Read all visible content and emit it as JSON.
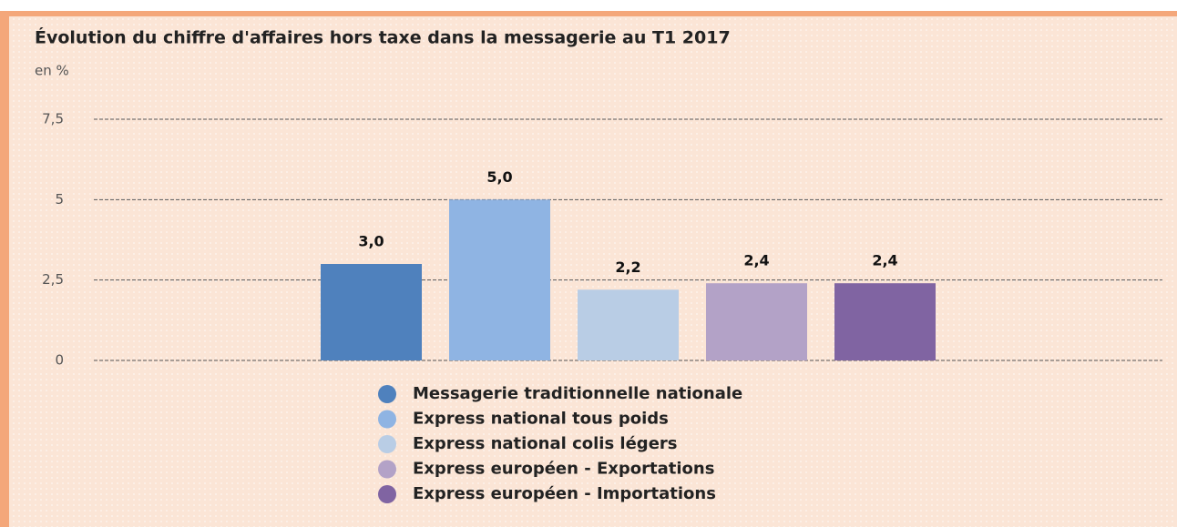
{
  "chart_data": {
    "type": "bar",
    "title": "Évolution du chiffre d'affaires hors taxe dans la messagerie au T1 2017",
    "ylabel": "en %",
    "series": [
      {
        "name": "Messagerie traditionnelle nationale",
        "color": "#4f81bd",
        "values": [
          3.0
        ],
        "value_labels": [
          "3,0"
        ]
      },
      {
        "name": "Express national tous poids",
        "color": "#8fb4e3",
        "values": [
          5.0
        ],
        "value_labels": [
          "5,0"
        ]
      },
      {
        "name": "Express national colis légers",
        "color": "#b9cde5",
        "values": [
          2.2
        ],
        "value_labels": [
          "2,2"
        ]
      },
      {
        "name": "Express européen - Exportations",
        "color": "#b3a2c7",
        "values": [
          2.4
        ],
        "value_labels": [
          "2,4"
        ]
      },
      {
        "name": "Express européen - Importations",
        "color": "#8064a2",
        "values": [
          2.4
        ],
        "value_labels": [
          "2,4"
        ]
      }
    ],
    "ylim": [
      0,
      7.5
    ],
    "yticks": [
      0,
      {
        "value": 2.5,
        "label": "2,5"
      },
      5,
      {
        "value": 7.5,
        "label": "7,5"
      }
    ],
    "grid": true,
    "legend": "bottom"
  }
}
